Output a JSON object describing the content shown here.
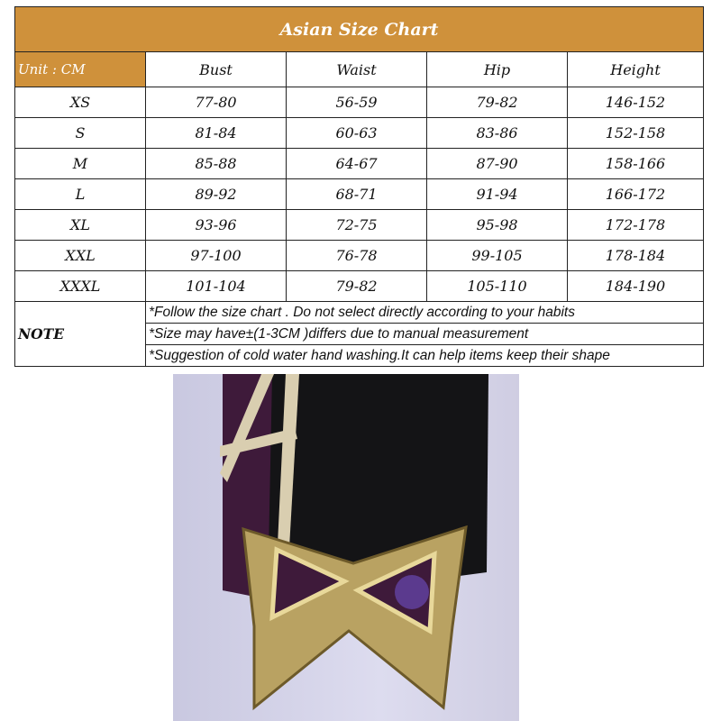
{
  "title": "Asian Size Chart",
  "unit_label": "Unit : CM",
  "columns": [
    "Bust",
    "Waist",
    "Hip",
    "Height"
  ],
  "rows": [
    {
      "size": "XS",
      "values": [
        "77-80",
        "56-59",
        "79-82",
        "146-152"
      ]
    },
    {
      "size": "S",
      "values": [
        "81-84",
        "60-63",
        "83-86",
        "152-158"
      ]
    },
    {
      "size": "M",
      "values": [
        "85-88",
        "64-67",
        "87-90",
        "158-166"
      ]
    },
    {
      "size": "L",
      "values": [
        "89-92",
        "68-71",
        "91-94",
        "166-172"
      ]
    },
    {
      "size": "XL",
      "values": [
        "93-96",
        "72-75",
        "95-98",
        "172-178"
      ]
    },
    {
      "size": "XXL",
      "values": [
        "97-100",
        "76-78",
        "99-105",
        "178-184"
      ]
    },
    {
      "size": "XXXL",
      "values": [
        "101-104",
        "79-82",
        "105-110",
        "184-190"
      ]
    }
  ],
  "note_label": "NOTE",
  "notes": [
    "*Follow the size chart . Do not select directly according to your habits",
    "*Size may have±(1-3CM )differs due to manual measurement",
    "*Suggestion of cold water hand washing.It can help items keep their shape"
  ],
  "colors": {
    "header": "#cf913b",
    "fabric": "#141416",
    "purple": "#3e1a3a",
    "gold": "#b9a262"
  }
}
